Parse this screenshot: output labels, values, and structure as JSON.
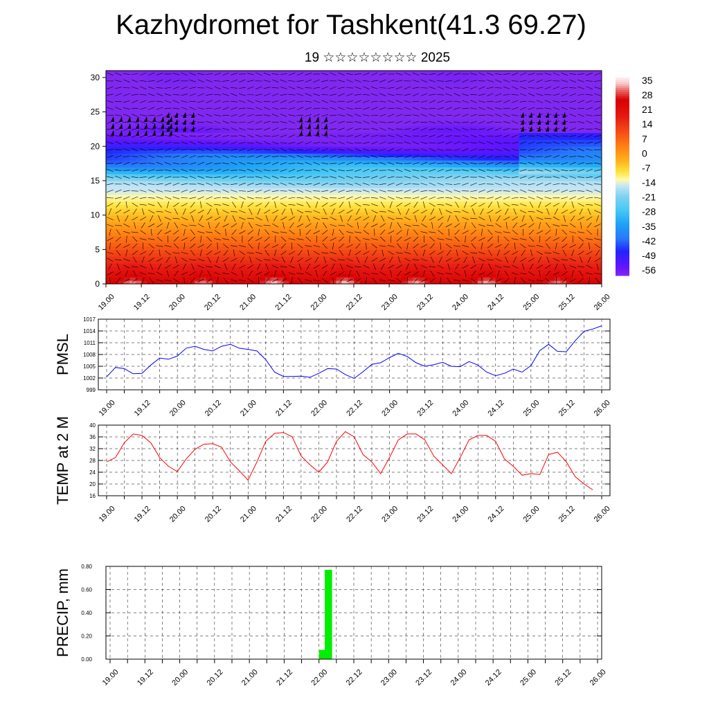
{
  "title": "Kazhydromet for Tashkent(41.3 69.27)",
  "subtitle": "19 ☆☆☆☆☆☆☆☆ 2025",
  "time_labels": [
    "19.00",
    "19.12",
    "20.00",
    "20.12",
    "21.00",
    "21.12",
    "22.00",
    "22.12",
    "23.00",
    "23.12",
    "24.00",
    "24.12",
    "25.00",
    "25.12",
    "26.00"
  ],
  "colors": {
    "pmsl": "#0000ff",
    "temp": "#ff0000",
    "precip": "#00ee00",
    "wind": "#000000"
  },
  "chart_data": [
    {
      "type": "heatmap",
      "name": "temperature-height cross section with wind barbs",
      "title": "",
      "ylabel": "",
      "ylim": [
        0,
        31
      ],
      "yticks": [
        0,
        5,
        10,
        15,
        20,
        25,
        30
      ],
      "colorbar": {
        "ticks": [
          "35",
          "28",
          "21",
          "14",
          "7",
          "0",
          "-7",
          "-14",
          "-21",
          "-28",
          "-35",
          "-42",
          "-49",
          "-56"
        ],
        "range": [
          -60,
          37
        ]
      },
      "levels_km": [
        0,
        5,
        10,
        15,
        20,
        25,
        30
      ],
      "mean_profile_C": [
        25,
        10,
        -5,
        -20,
        -55,
        -65,
        -62
      ],
      "surface_daily_max_C": [
        34,
        33,
        36,
        36,
        35,
        35,
        33
      ],
      "stratosphere_C": -60
    },
    {
      "type": "line",
      "name": "PMSL",
      "ylabel": "PMSL",
      "ylim": [
        999,
        1017
      ],
      "yticks": [
        "999",
        "1002",
        "1005",
        "1008",
        "1011",
        "1014",
        "1017"
      ],
      "x": [
        0,
        1,
        2,
        3,
        4,
        5,
        6,
        7,
        8,
        9,
        10,
        11,
        12,
        13,
        14,
        15,
        16,
        17,
        18,
        19,
        20,
        21,
        22,
        23,
        24,
        25,
        26,
        27,
        28,
        29,
        30,
        31,
        32,
        33,
        34,
        35,
        36,
        37,
        38,
        39,
        40,
        41,
        42,
        43,
        44,
        45,
        46,
        47,
        48,
        49,
        50,
        51,
        52,
        53,
        54,
        55,
        56
      ],
      "values": [
        1002.3,
        1004.7,
        1004.4,
        1003.1,
        1003.2,
        1005.3,
        1007.1,
        1006.8,
        1007.6,
        1009.6,
        1010.1,
        1009.3,
        1008.9,
        1010.1,
        1010.6,
        1009.6,
        1009.3,
        1008.9,
        1006.7,
        1003.5,
        1002.4,
        1002.4,
        1002.5,
        1002.2,
        1003.2,
        1004.4,
        1004.3,
        1002.9,
        1001.9,
        1003.6,
        1005.5,
        1005.9,
        1007.2,
        1008.3,
        1007.5,
        1005.9,
        1005.0,
        1005.4,
        1006.0,
        1005.0,
        1004.9,
        1006.2,
        1005.3,
        1003.5,
        1002.6,
        1003.2,
        1004.3,
        1003.5,
        1005.2,
        1009.0,
        1010.6,
        1008.8,
        1008.7,
        1011.5,
        1013.9,
        1014.5,
        1015.3
      ]
    },
    {
      "type": "line",
      "name": "TEMP at 2 M",
      "ylabel": "TEMP at 2 M",
      "ylim": [
        16,
        40
      ],
      "yticks": [
        "16",
        "20",
        "24",
        "28",
        "32",
        "36",
        "40"
      ],
      "x": [
        0,
        1,
        2,
        3,
        4,
        5,
        6,
        7,
        8,
        9,
        10,
        11,
        12,
        13,
        14,
        15,
        16,
        17,
        18,
        19,
        20,
        21,
        22,
        23,
        24,
        25,
        26,
        27,
        28,
        29,
        30,
        31,
        32,
        33,
        34,
        35,
        36,
        37,
        38,
        39,
        40,
        41,
        42,
        43,
        44,
        45,
        46,
        47,
        48,
        49,
        50,
        51,
        52,
        53,
        54,
        55,
        56
      ],
      "values": [
        27.5,
        29.0,
        34.0,
        37.0,
        36.5,
        34.0,
        29.0,
        26.0,
        24.2,
        28.5,
        31.8,
        33.5,
        33.7,
        32.5,
        27.5,
        24.5,
        21.3,
        27.5,
        34.5,
        37.2,
        37.5,
        36.0,
        29.5,
        26.5,
        24.0,
        27.5,
        34.5,
        37.8,
        36.0,
        30.0,
        27.5,
        23.5,
        29.0,
        35.0,
        37.0,
        37.0,
        35.0,
        29.5,
        26.5,
        23.5,
        29.0,
        35.0,
        36.5,
        36.5,
        34.5,
        28.5,
        26.0,
        23.0,
        23.5,
        23.2,
        30.0,
        30.8,
        27.5,
        22.5,
        20.0,
        18.0,
        null
      ]
    },
    {
      "type": "bar",
      "name": "PRECIP, mm",
      "ylabel": "PRECIP, mm",
      "ylim": [
        0,
        0.8
      ],
      "yticks": [
        "0.00",
        "0.20",
        "0.40",
        "0.60",
        "0.80"
      ],
      "bars": [
        {
          "t_start": 72.0,
          "t_end": 73.0,
          "value": 0.08
        },
        {
          "t_start": 73.0,
          "t_end": 74.0,
          "value": 0.77
        }
      ]
    }
  ]
}
